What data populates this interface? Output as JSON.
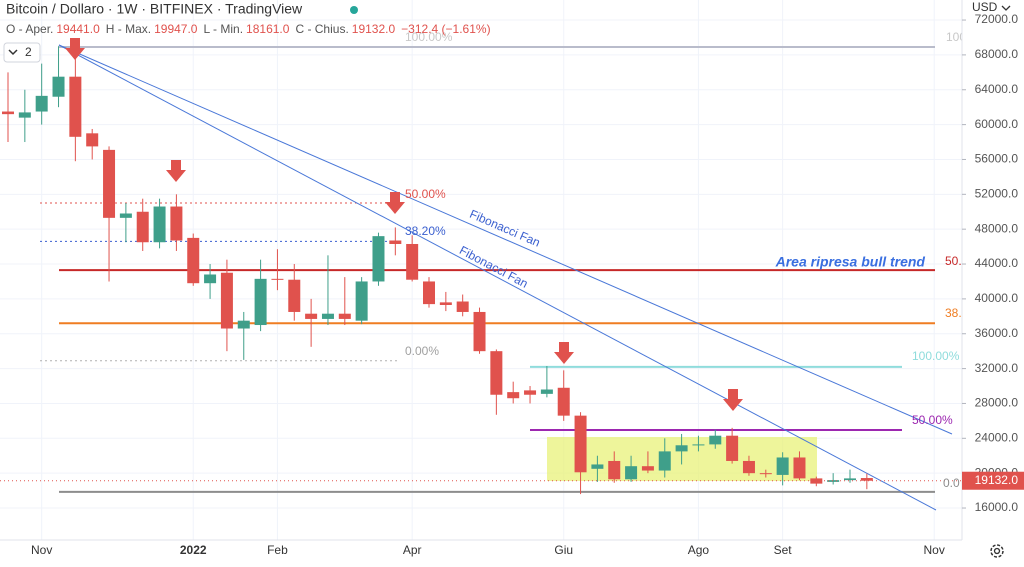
{
  "chart_data": {
    "type": "candlestick",
    "title": "Bitcoin / Dollaro · 1W · BITFINEX · TradingView",
    "ohlc_header": [
      {
        "label": "O - Aper.",
        "value": "19441.0"
      },
      {
        "label": "H - Max.",
        "value": "19947.0"
      },
      {
        "label": "L - Min.",
        "value": "18161.0"
      },
      {
        "label": "C - Chius.",
        "value": "19132.0"
      }
    ],
    "change": "−312.4 (−1.61%)",
    "indicator_count": "2",
    "currency": "USD",
    "last_price_label": "19132.0",
    "categories": [
      null,
      null,
      "Nov",
      null,
      null,
      null,
      null,
      null,
      null,
      null,
      null,
      "2022",
      null,
      null,
      null,
      null,
      "Feb",
      null,
      null,
      null,
      null,
      null,
      null,
      null,
      "Apr",
      null,
      null,
      null,
      null,
      null,
      null,
      null,
      null,
      "Giu",
      null,
      null,
      null,
      null,
      null,
      null,
      null,
      "Ago",
      null,
      null,
      null,
      null,
      "Set",
      null,
      null,
      null,
      null,
      null,
      null,
      null,
      null,
      "Nov"
    ],
    "open": [
      61500,
      60800,
      61500,
      63200,
      65500,
      59000,
      57100,
      49300,
      50000,
      46500,
      50600,
      47000,
      41800,
      43000,
      36600,
      37000,
      42300,
      42200,
      38300,
      37700,
      38300,
      37500,
      42000,
      46700,
      46300,
      42000,
      39600,
      39700,
      38500,
      34000,
      29300,
      29500,
      29100,
      29800,
      26600,
      20500,
      21400,
      19300,
      20800,
      20300,
      22500,
      23200,
      23300,
      24300,
      21400,
      20000,
      19800,
      21800,
      19400,
      19000,
      19200,
      19441,
      null,
      null,
      null,
      null
    ],
    "high": [
      66000,
      64000,
      67000,
      69000,
      68500,
      59500,
      57500,
      51000,
      51500,
      51500,
      52000,
      47500,
      44000,
      44500,
      38500,
      44500,
      45700,
      44000,
      40000,
      45000,
      42500,
      42500,
      47600,
      48200,
      47300,
      42500,
      40800,
      40500,
      39000,
      34200,
      30500,
      30000,
      32300,
      31800,
      27000,
      22000,
      22500,
      22000,
      22500,
      24000,
      24500,
      24300,
      25000,
      25200,
      22000,
      20400,
      22400,
      22500,
      19600,
      20000,
      20400,
      19947,
      null,
      null,
      null,
      null
    ],
    "low": [
      58000,
      58000,
      60000,
      62000,
      55800,
      56000,
      42000,
      46500,
      45500,
      45800,
      45500,
      41500,
      40000,
      34000,
      33000,
      36300,
      41000,
      37500,
      34500,
      37000,
      37000,
      37100,
      41500,
      45000,
      42000,
      39000,
      38600,
      38000,
      33700,
      26700,
      28000,
      28000,
      28700,
      26000,
      17600,
      19000,
      18900,
      19000,
      20000,
      19500,
      21000,
      22500,
      22800,
      21100,
      19700,
      19500,
      18600,
      19200,
      18500,
      18700,
      18900,
      18161,
      null,
      null,
      null,
      null
    ],
    "close": [
      61200,
      61400,
      63300,
      65500,
      58600,
      57500,
      49300,
      49800,
      46500,
      50600,
      46700,
      41800,
      42800,
      36600,
      37500,
      42300,
      42200,
      38500,
      37700,
      38300,
      37700,
      42000,
      47200,
      46300,
      42200,
      39400,
      39300,
      38500,
      34000,
      29000,
      28600,
      29000,
      29600,
      26600,
      20100,
      21000,
      19300,
      20800,
      20300,
      22500,
      23200,
      23300,
      24300,
      21400,
      20000,
      19900,
      21800,
      19400,
      18800,
      19200,
      19400,
      19132,
      null,
      null,
      null,
      null
    ],
    "up_color": "#3f9f8a",
    "down_color": "#e0524d",
    "ylim": [
      12330,
      74300
    ],
    "yticks": [
      {
        "value": 16000,
        "label": "16000.0"
      },
      {
        "value": 20000,
        "label": "20000.0"
      },
      {
        "value": 24000,
        "label": "24000.0"
      },
      {
        "value": 28000,
        "label": "28000.0"
      },
      {
        "value": 32000,
        "label": "32000.0"
      },
      {
        "value": 36000,
        "label": "36000.0"
      },
      {
        "value": 40000,
        "label": "40000.0"
      },
      {
        "value": 44000,
        "label": "44000.0"
      },
      {
        "value": 48000,
        "label": "48000.0"
      },
      {
        "value": 52000,
        "label": "52000.0"
      },
      {
        "value": 56000,
        "label": "56000.0"
      },
      {
        "value": 60000,
        "label": "60000.0"
      },
      {
        "value": 64000,
        "label": "64000.0"
      },
      {
        "value": 68000,
        "label": "68000.0"
      },
      {
        "value": 72000,
        "label": "72000.0"
      }
    ],
    "grid": true,
    "levels": [
      {
        "value": 68900,
        "color": "#b9bccb"
      },
      {
        "value": 43300,
        "color": "#c62828"
      },
      {
        "value": 37200,
        "color": "#ef7d22"
      },
      {
        "value": 32200,
        "color": "#8fdcdc"
      },
      {
        "value": 24950,
        "color": "#9c27b0"
      },
      {
        "value": 17850,
        "color": "#8d8d8d"
      },
      {
        "value": 51000,
        "color": "#e0524d"
      },
      {
        "value": 46600,
        "color": "#3a5fcf"
      },
      {
        "value": 32900,
        "color": "#b0b0b0"
      }
    ],
    "annotations": [
      "100.00%",
      "50.00%",
      "38.20%",
      "0.00%",
      "100.00%",
      "50.00%",
      "0.0",
      "100",
      "50.",
      "38.",
      "Area ripresa bull trend",
      "Fibonacci Fan",
      "Fibonacci Fan"
    ]
  }
}
